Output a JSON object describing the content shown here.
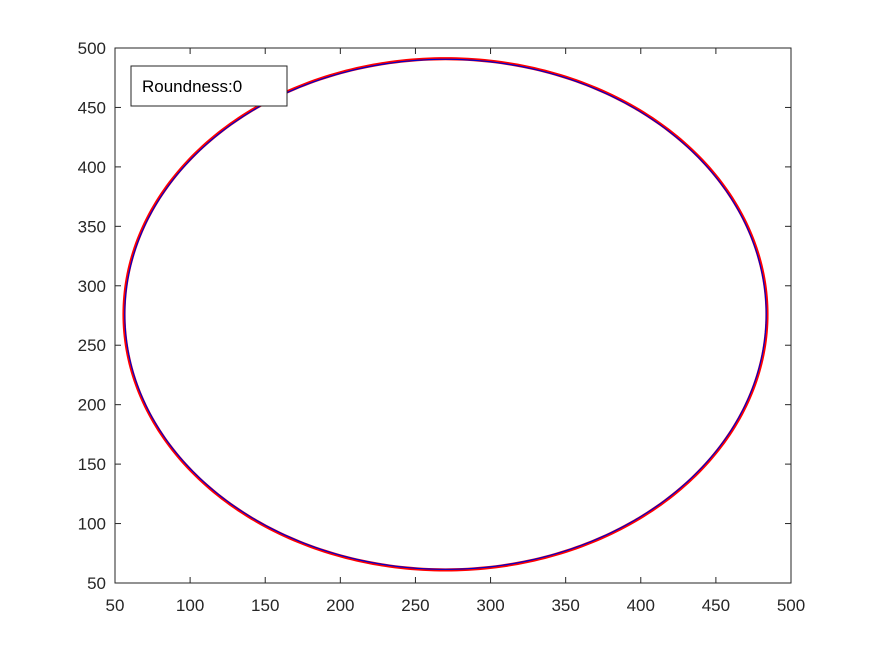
{
  "chart_data": {
    "type": "line",
    "title": "",
    "xlabel": "",
    "ylabel": "",
    "xlim": [
      50,
      500
    ],
    "ylim": [
      50,
      500
    ],
    "x_ticks": [
      "50",
      "100",
      "150",
      "200",
      "250",
      "300",
      "350",
      "400",
      "450",
      "500"
    ],
    "y_ticks": [
      "50",
      "100",
      "150",
      "200",
      "250",
      "300",
      "350",
      "400",
      "450",
      "500"
    ],
    "grid": false,
    "legend": "none",
    "annotation": "Roundness:0",
    "series": [
      {
        "color": "#ff0000",
        "shape": "ellipse",
        "center": [
          270,
          276
        ],
        "semi_axes": [
          214,
          215
        ],
        "style": "thick"
      },
      {
        "color": "#0000cc",
        "shape": "ellipse",
        "center": [
          270,
          276
        ],
        "semi_axes": [
          213.5,
          214.5
        ],
        "style": "thin"
      }
    ]
  }
}
